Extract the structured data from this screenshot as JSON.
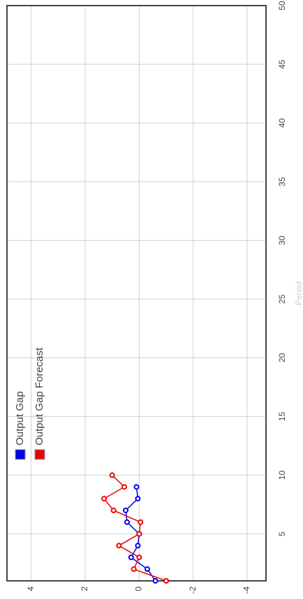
{
  "chart_data": {
    "type": "line",
    "x_label": "Period",
    "x": [
      1,
      2,
      3,
      4,
      5,
      6,
      7,
      8,
      9,
      10
    ],
    "series": [
      {
        "name": "Output Gap",
        "color": "#0000ee",
        "values": [
          -0.6,
          -0.3,
          0.3,
          0.05,
          0,
          0.45,
          0.5,
          0.05,
          0.1,
          null
        ]
      },
      {
        "name": "Output Gap Forecast",
        "color": "#ee0000",
        "values": [
          -1.0,
          0.2,
          0,
          0.75,
          0,
          -0.05,
          0.95,
          1.3,
          0.55,
          1.0
        ]
      }
    ],
    "xlim": [
      1,
      50
    ],
    "xticks": [
      5,
      10,
      15,
      20,
      25,
      30,
      35,
      40,
      45,
      50
    ],
    "ylim": [
      -4.7,
      4.9
    ],
    "yticks": [
      -4,
      -2,
      0,
      2,
      4
    ],
    "grid": true,
    "legend": "top-left"
  }
}
